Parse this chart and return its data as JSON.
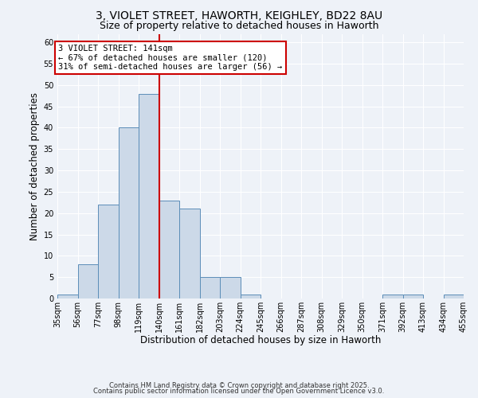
{
  "title1": "3, VIOLET STREET, HAWORTH, KEIGHLEY, BD22 8AU",
  "title2": "Size of property relative to detached houses in Haworth",
  "xlabel": "Distribution of detached houses by size in Haworth",
  "ylabel": "Number of detached properties",
  "bin_edges": [
    35,
    56,
    77,
    98,
    119,
    140,
    161,
    182,
    203,
    224,
    245,
    266,
    287,
    308,
    329,
    350,
    371,
    392,
    413,
    434,
    455
  ],
  "bar_heights": [
    1,
    8,
    22,
    40,
    48,
    23,
    21,
    5,
    5,
    1,
    0,
    0,
    0,
    0,
    0,
    0,
    1,
    1,
    0,
    1
  ],
  "bar_face_color": "#ccd9e8",
  "bar_edge_color": "#5b8db8",
  "property_line_x": 140,
  "property_line_color": "#cc0000",
  "ylim": [
    0,
    62
  ],
  "yticks": [
    0,
    5,
    10,
    15,
    20,
    25,
    30,
    35,
    40,
    45,
    50,
    55,
    60
  ],
  "annotation_text": "3 VIOLET STREET: 141sqm\n← 67% of detached houses are smaller (120)\n31% of semi-detached houses are larger (56) →",
  "annotation_box_facecolor": "#ffffff",
  "annotation_box_edgecolor": "#cc0000",
  "footer_text1": "Contains HM Land Registry data © Crown copyright and database right 2025.",
  "footer_text2": "Contains public sector information licensed under the Open Government Licence v3.0.",
  "background_color": "#eef2f8",
  "title_fontsize": 10,
  "subtitle_fontsize": 9,
  "tick_label_fontsize": 7,
  "axis_label_fontsize": 8.5,
  "annotation_fontsize": 7.5,
  "footer_fontsize": 6
}
